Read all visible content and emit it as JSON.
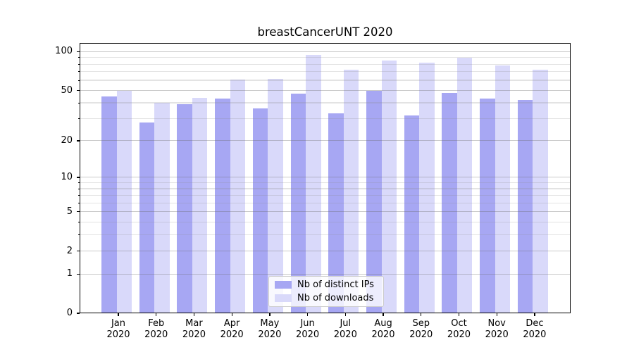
{
  "chart_data": {
    "type": "bar",
    "title": "breastCancerUNT 2020",
    "categories": [
      "Jan 2020",
      "Feb 2020",
      "Mar 2020",
      "Apr 2020",
      "May 2020",
      "Jun 2020",
      "Jul 2020",
      "Aug 2020",
      "Sep 2020",
      "Oct 2020",
      "Nov 2020",
      "Dec 2020"
    ],
    "series": [
      {
        "name": "Nb of distinct IPs",
        "color": "#a7a7f3",
        "values": [
          45,
          28,
          39,
          43,
          36,
          47,
          33,
          50,
          32,
          48,
          43,
          42
        ]
      },
      {
        "name": "Nb of downloads",
        "color": "#d9d9fa",
        "values": [
          50,
          40,
          44,
          61,
          62,
          95,
          73,
          86,
          82,
          90,
          78,
          73
        ]
      }
    ],
    "xlabel": "",
    "ylabel": "",
    "yscale": "log1p",
    "ylim": [
      0,
      117
    ],
    "y_ticks": [
      100,
      50,
      20,
      10,
      5,
      2,
      1,
      0
    ],
    "y_tick_labels": [
      "100",
      "50",
      "20",
      "10",
      "5",
      "2",
      "1",
      "0"
    ],
    "y_minor_ticks": [
      3,
      4,
      6,
      7,
      8,
      9,
      30,
      40,
      60,
      70,
      80,
      90
    ],
    "grid": true,
    "legend_position": "lower center"
  },
  "colors": {
    "bar_distinct_ips": "#a7a7f3",
    "bar_downloads": "#d9d9fa",
    "grid_major": "#c9c9c9",
    "grid_minor": "#e2e2e2",
    "axis": "#000000",
    "legend_border": "#cccccc"
  }
}
